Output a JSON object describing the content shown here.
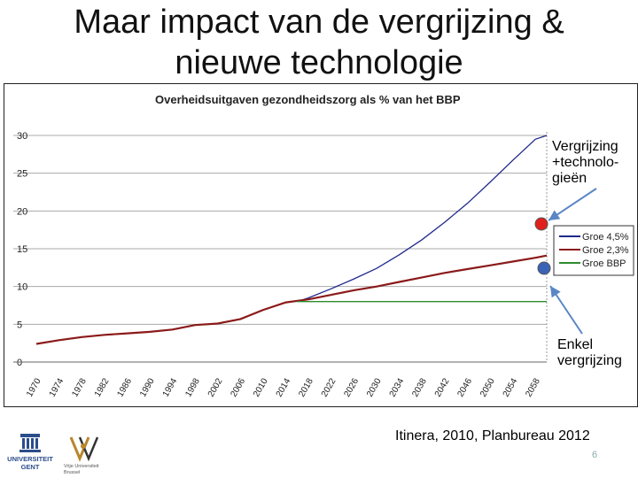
{
  "slide": {
    "title": "Maar impact van de vergrijzing &\nnieuwe technologie",
    "source": "Itinera, 2010, Planbureau 2012",
    "page_number": "6",
    "annotation_top": "Vergrijzing\n+technolo-\ngieën",
    "annotation_bottom": "Enkel\nvergrijzing",
    "logos": [
      {
        "name": "university-ghent-logo",
        "text": "UNIVERSITEIT\nGENT"
      },
      {
        "name": "vub-logo",
        "text": "Vrije Universiteit\nBrussel"
      }
    ]
  },
  "colors": {
    "series_blue": "#1f2a8a",
    "series_red": "#8b1a1a",
    "series_green": "#2e8b2e",
    "marker_red": "#e0201c",
    "marker_blue": "#3a63b8",
    "arrow": "#5a86c6",
    "grid": "#aaaaaa"
  },
  "chart_data": {
    "type": "line",
    "title": "Overheidsuitgaven gezondheidszorg als % van het BBP",
    "xlabel": "",
    "ylabel": "",
    "ylim": [
      0,
      30
    ],
    "yticks": [
      "0",
      "5",
      "10",
      "15",
      "20",
      "25",
      "30"
    ],
    "x": [
      1970,
      1974,
      1978,
      1982,
      1986,
      1990,
      1994,
      1998,
      2002,
      2006,
      2010,
      2014,
      2018,
      2022,
      2026,
      2030,
      2034,
      2038,
      2042,
      2046,
      2050,
      2054,
      2058,
      2060
    ],
    "xtick_labels": [
      "1970",
      "1974",
      "1978",
      "1982",
      "1986",
      "1990",
      "1994",
      "1998",
      "2002",
      "2006",
      "2010",
      "2014",
      "2018",
      "2022",
      "2026",
      "2030",
      "2034",
      "2038",
      "2042",
      "2046",
      "2050",
      "2054",
      "2058"
    ],
    "grid": true,
    "legend": "right",
    "series": [
      {
        "name": "Groe 4,5%",
        "color": "#1f2a8a",
        "x": [
          2016,
          2018,
          2022,
          2026,
          2030,
          2034,
          2038,
          2042,
          2046,
          2050,
          2054,
          2058,
          2060
        ],
        "values": [
          8.0,
          8.5,
          9.7,
          11.0,
          12.4,
          14.2,
          16.2,
          18.5,
          21.0,
          23.8,
          26.7,
          29.5,
          30.5
        ]
      },
      {
        "name": "Groe 2,3%",
        "color": "#8b1a1a",
        "x": [
          1970,
          1974,
          1978,
          1982,
          1986,
          1990,
          1994,
          1998,
          2002,
          2006,
          2010,
          2014,
          2018,
          2022,
          2026,
          2030,
          2034,
          2038,
          2042,
          2046,
          2050,
          2054,
          2058,
          2060
        ],
        "values": [
          2.4,
          2.9,
          3.3,
          3.6,
          3.8,
          4.0,
          4.3,
          4.9,
          5.1,
          5.7,
          6.9,
          7.9,
          8.3,
          8.9,
          9.5,
          10.0,
          10.6,
          11.2,
          11.8,
          12.3,
          12.8,
          13.3,
          13.8,
          14.1
        ]
      },
      {
        "name": "Groe BBP",
        "color": "#2e8b2e",
        "x": [
          2016,
          2060
        ],
        "values": [
          8.0,
          8.0
        ]
      }
    ]
  }
}
